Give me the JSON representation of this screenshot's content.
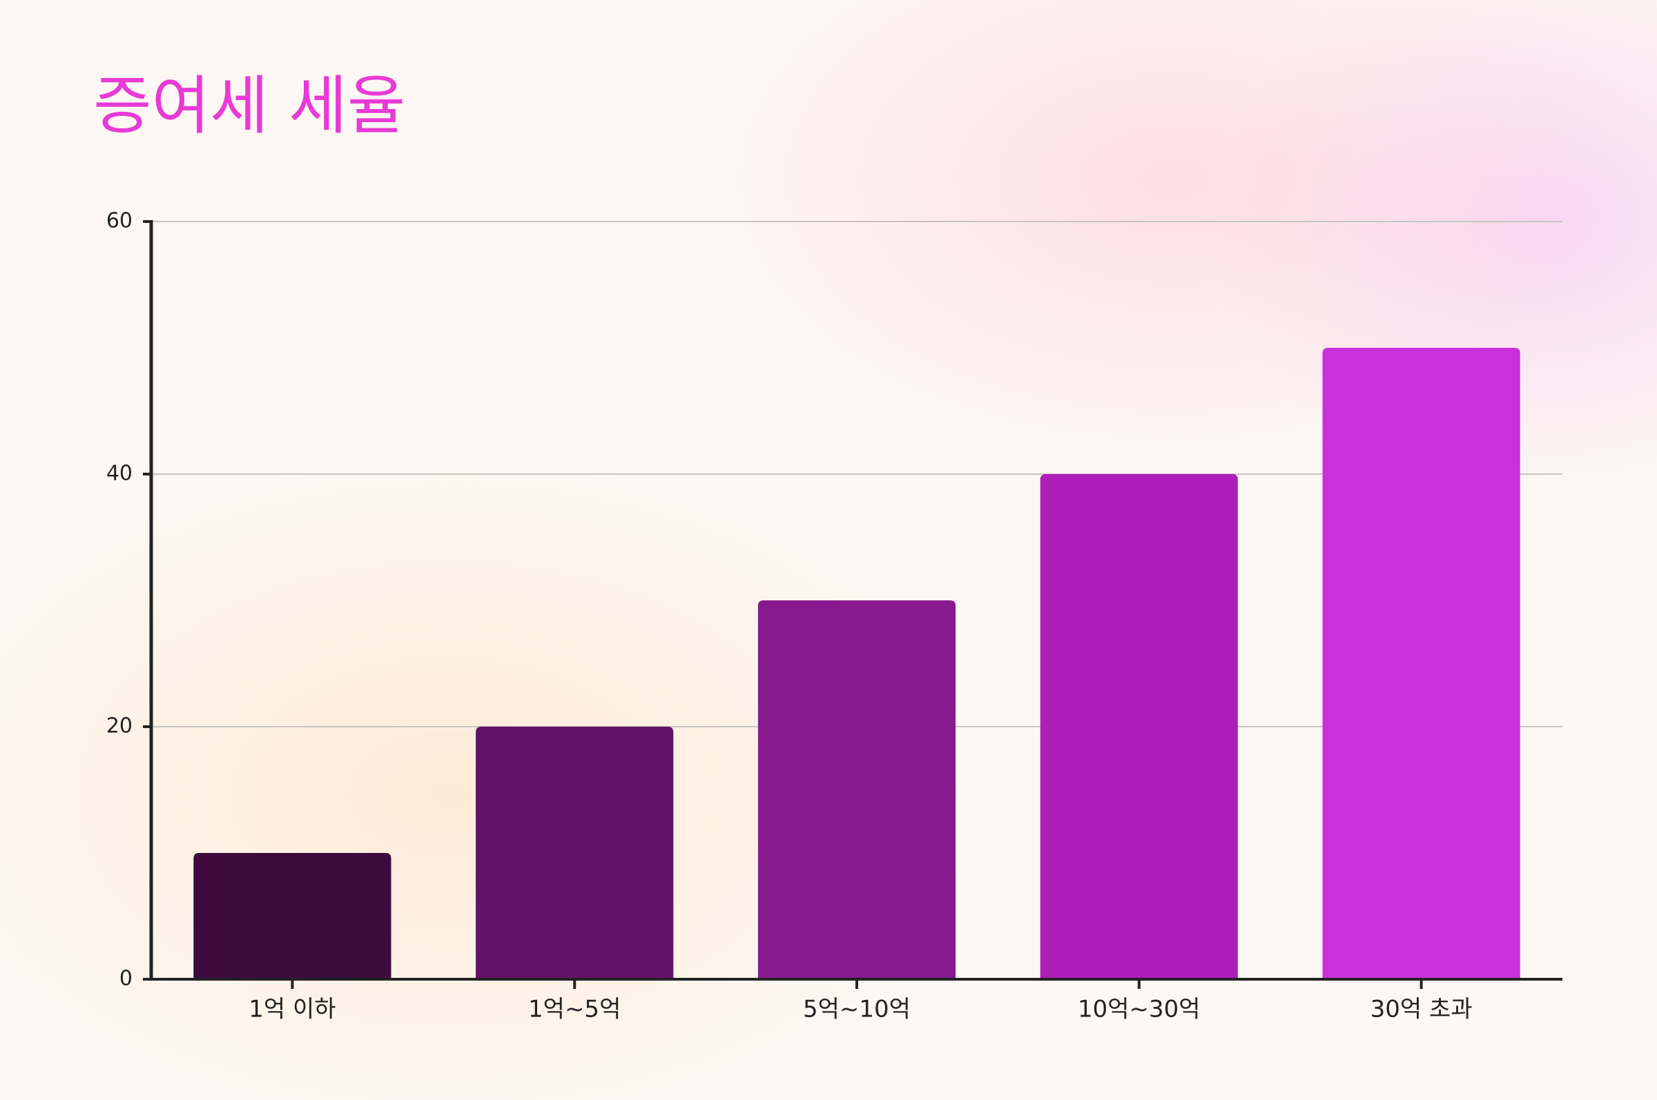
{
  "chart_data": {
    "type": "bar",
    "title": "증여세 세율",
    "categories": [
      "1억 이하",
      "1억~5억",
      "5억~10억",
      "10억~30억",
      "30억 초과"
    ],
    "values": [
      10,
      20,
      30,
      40,
      50
    ],
    "colors": [
      "#3d0a3d",
      "#621266",
      "#871a8e",
      "#ad1fb8",
      "#cb30dc"
    ],
    "ylim": [
      0,
      60
    ],
    "yticks": [
      0,
      20,
      40,
      60
    ],
    "grid": true
  }
}
